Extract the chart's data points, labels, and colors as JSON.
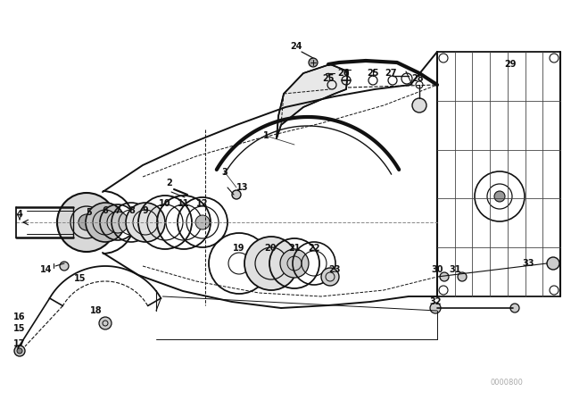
{
  "bg_color": "#ffffff",
  "line_color": "#111111",
  "fig_width": 6.4,
  "fig_height": 4.48,
  "dpi": 100,
  "watermark": "0000800"
}
